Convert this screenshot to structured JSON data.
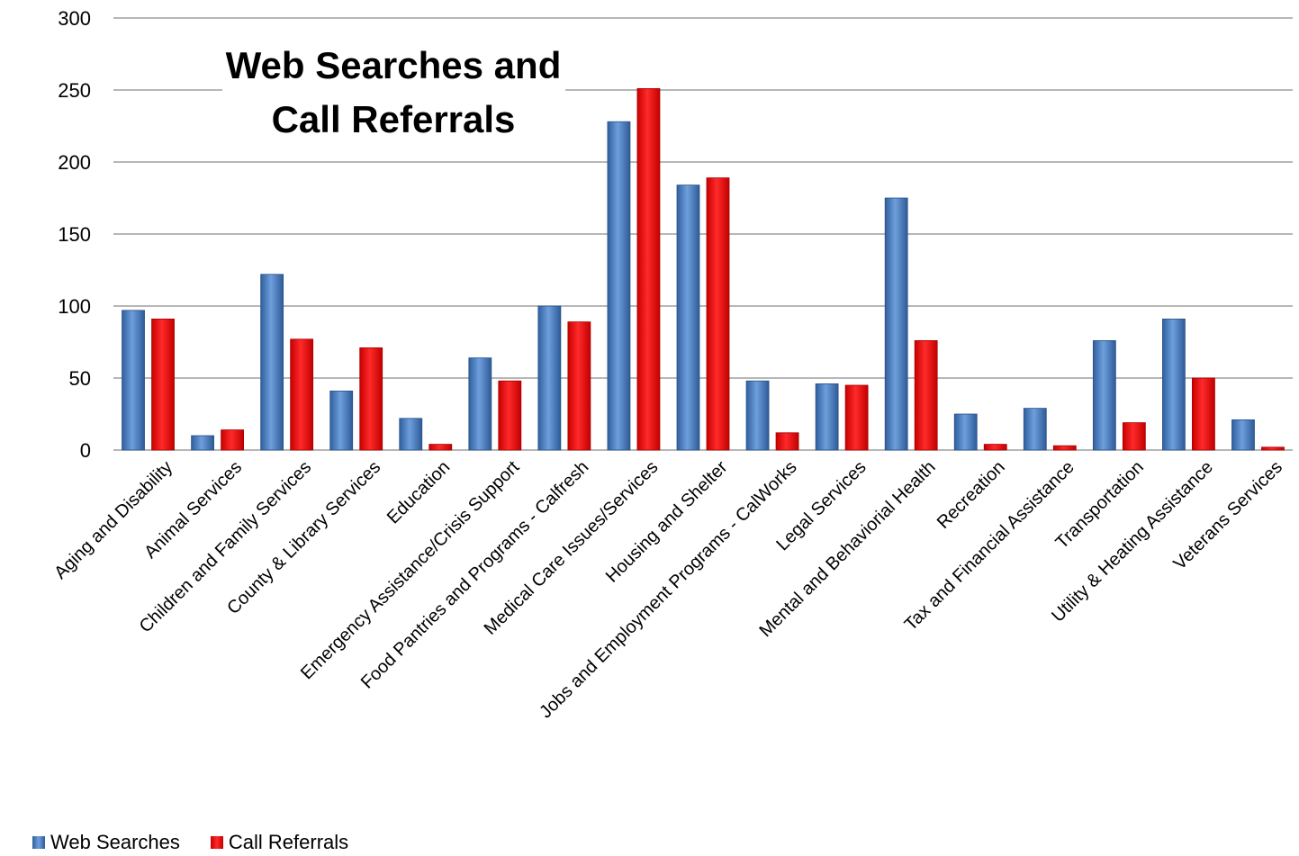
{
  "chart_data": {
    "type": "bar",
    "title": "Web Searches and Call Referrals",
    "title_lines": [
      "Web Searches and",
      "Call Referrals"
    ],
    "xlabel": "",
    "ylabel": "",
    "ylim": [
      0,
      300
    ],
    "yticks": [
      0,
      50,
      100,
      150,
      200,
      250,
      300
    ],
    "grid": true,
    "legend_position": "bottom-left",
    "categories": [
      "Aging and Disability",
      "Animal Services",
      "Children and Family Services",
      "County & Library Services",
      "Education",
      "Emergency Assistance/Crisis Support",
      "Food Pantries and Programs - Calfresh",
      "Medical Care Issues/Services",
      "Housing and Shelter",
      "Jobs and Employment Programs -  CalWorks",
      "Legal Services",
      "Mental and Behaviorial Health",
      "Recreation",
      "Tax and Financial Assistance",
      "Transportation",
      "Utility & Heating Assistance",
      "Veterans Services"
    ],
    "series": [
      {
        "name": "Web Searches",
        "color": "#4a7ec0",
        "values": [
          97,
          10,
          122,
          41,
          22,
          64,
          100,
          228,
          184,
          48,
          46,
          175,
          25,
          29,
          76,
          91,
          21
        ]
      },
      {
        "name": "Call Referrals",
        "color": "#ee0000",
        "values": [
          91,
          14,
          77,
          71,
          4,
          48,
          89,
          251,
          189,
          12,
          45,
          76,
          4,
          3,
          19,
          50,
          2
        ]
      }
    ]
  }
}
